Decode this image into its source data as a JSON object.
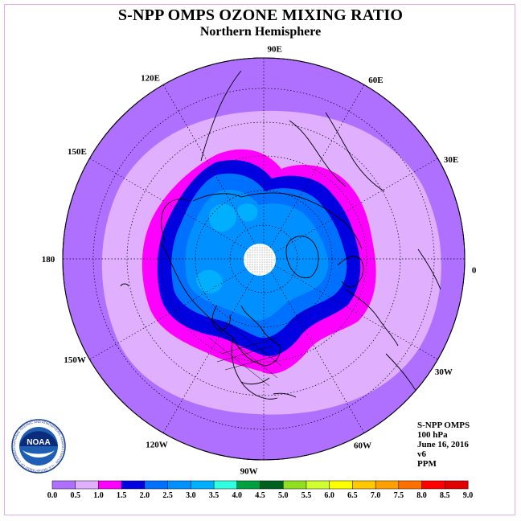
{
  "title": "S-NPP OMPS OZONE MIXING RATIO",
  "subtitle": "Northern Hemisphere",
  "longitude_labels": [
    "90E",
    "60E",
    "30E",
    "0",
    "30W",
    "60W",
    "90W",
    "120W",
    "150W",
    "180",
    "150E",
    "120E"
  ],
  "info": {
    "instrument": "S-NPP OMPS",
    "level": "100 hPa",
    "date": "June 16, 2016",
    "version": "v6",
    "units": "PPM"
  },
  "colorbar": {
    "ticks": [
      "0.0",
      "0.5",
      "1.0",
      "1.5",
      "2.0",
      "2.5",
      "3.0",
      "3.5",
      "4.0",
      "4.5",
      "5.0",
      "5.5",
      "6.0",
      "6.5",
      "7.0",
      "7.5",
      "8.0",
      "8.5",
      "9.0"
    ],
    "colors": [
      "#b070ff",
      "#e0b0ff",
      "#ff00ff",
      "#0000e0",
      "#0070ff",
      "#0090ff",
      "#00b0ff",
      "#30ffe0",
      "#00a040",
      "#006020",
      "#90e020",
      "#d0ff30",
      "#ffff00",
      "#ffc800",
      "#ffa000",
      "#ff7000",
      "#ff0000",
      "#e00000",
      "#905030"
    ]
  },
  "logo": {
    "text": "NOAA",
    "ring_text": "NATIONAL OCEANIC AND ATMOSPHERIC ADMINISTRATION · U.S. DEPARTMENT OF COMMERCE"
  }
}
